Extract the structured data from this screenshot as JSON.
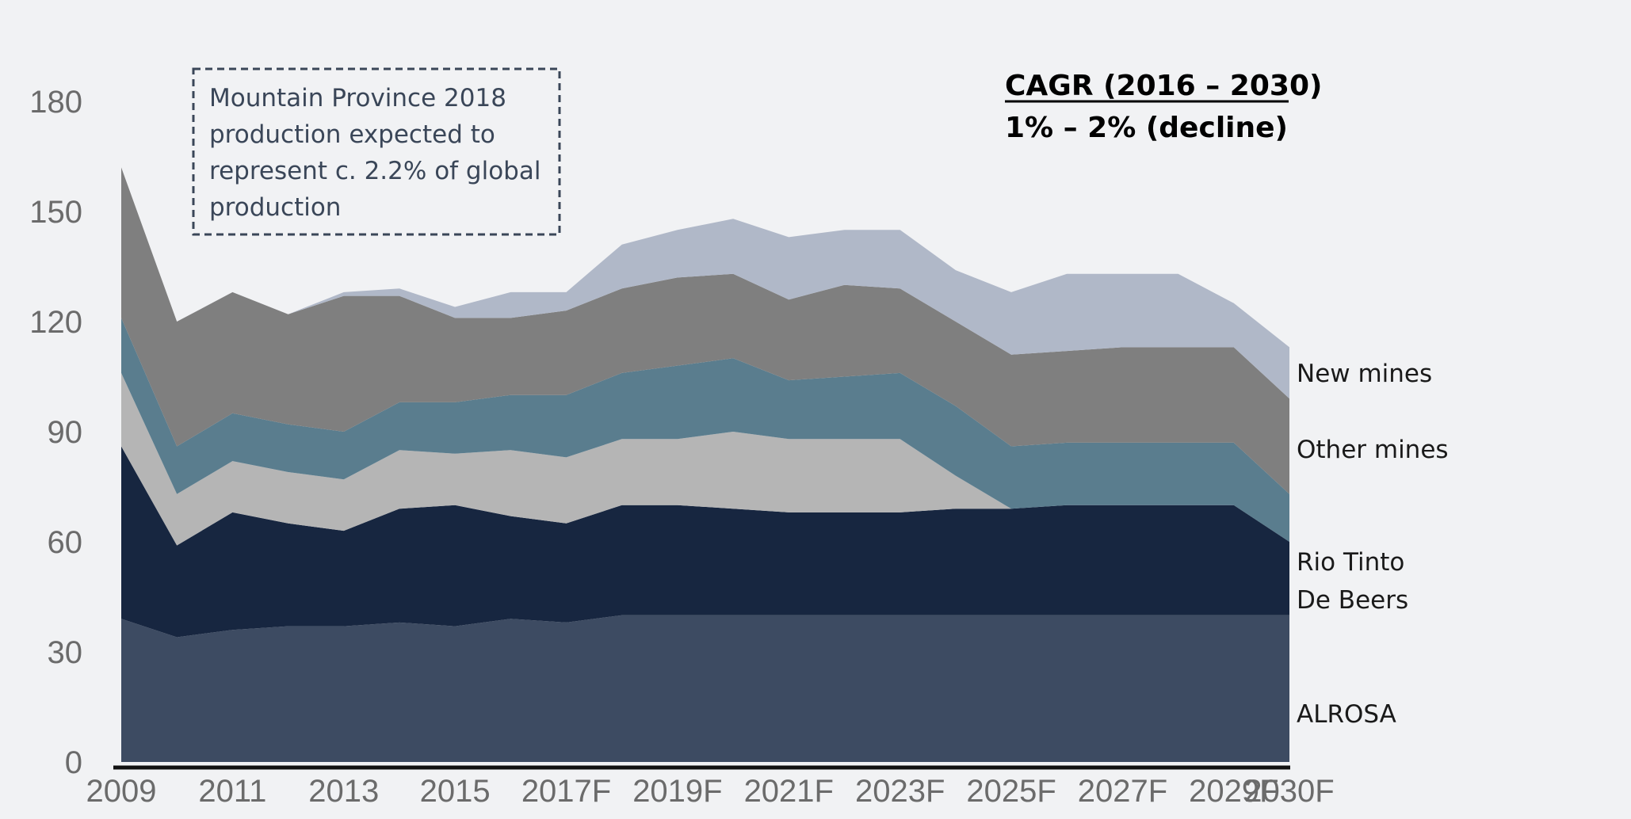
{
  "chart_data": {
    "type": "area",
    "stacked": true,
    "title": "",
    "xlabel": "",
    "ylabel": "",
    "ylim": [
      0,
      180
    ],
    "yticks": [
      0,
      30,
      60,
      90,
      120,
      150,
      180
    ],
    "x": [
      "2009",
      "2010",
      "2011",
      "2012",
      "2013",
      "2014",
      "2015",
      "2016",
      "2017F",
      "2018F",
      "2019F",
      "2020F",
      "2021F",
      "2022F",
      "2023F",
      "2024F",
      "2025F",
      "2026F",
      "2027F",
      "2028F",
      "2029F",
      "2030F"
    ],
    "xtick_labels": [
      "2009",
      "2011",
      "2013",
      "2015",
      "2017F",
      "2019F",
      "2021F",
      "2023F",
      "2025F",
      "2027F",
      "2029F",
      "2030F"
    ],
    "series": [
      {
        "name": "ALROSA",
        "color": "#3d4b62",
        "values": [
          39,
          34,
          36,
          37,
          37,
          38,
          37,
          39,
          38,
          40,
          40,
          40,
          40,
          40,
          40,
          40,
          40,
          40,
          40,
          40,
          40,
          40
        ]
      },
      {
        "name": "De Beers",
        "color": "#172640",
        "values": [
          47,
          25,
          32,
          28,
          26,
          31,
          33,
          28,
          27,
          30,
          30,
          29,
          28,
          28,
          28,
          29,
          29,
          30,
          30,
          30,
          30,
          20
        ]
      },
      {
        "name": "Rio Tinto",
        "color": "#b5b5b5",
        "values": [
          20,
          14,
          14,
          14,
          14,
          16,
          14,
          18,
          18,
          18,
          18,
          21,
          20,
          20,
          20,
          9,
          0,
          0,
          0,
          0,
          0,
          0
        ]
      },
      {
        "name": "Other mines",
        "color": "#5a7d8e",
        "values": [
          15,
          13,
          13,
          13,
          13,
          13,
          14,
          15,
          17,
          18,
          20,
          20,
          16,
          17,
          18,
          19,
          17,
          17,
          17,
          17,
          17,
          13
        ]
      },
      {
        "name": "",
        "color": "#7f7f7f",
        "values": [
          41,
          34,
          33,
          30,
          37,
          29,
          23,
          21,
          23,
          23,
          24,
          23,
          22,
          25,
          23,
          23,
          25,
          25,
          26,
          26,
          26,
          26
        ]
      },
      {
        "name": "New mines",
        "color": "#b0b8c8",
        "values": [
          0,
          0,
          0,
          0,
          1,
          2,
          3,
          7,
          5,
          12,
          13,
          15,
          17,
          15,
          16,
          14,
          17,
          21,
          20,
          20,
          12,
          14
        ]
      }
    ],
    "annotations": [
      {
        "lines": [
          "Mountain Province 2018",
          "production expected to",
          "represent c. 2.2% of global",
          "production"
        ]
      },
      {
        "lines": [
          "CAGR (2016 – 2030)",
          "1% – 2% (decline)"
        ]
      }
    ],
    "legend": "right-inline",
    "grid": false
  },
  "colors": {
    "background": "#f1f2f4",
    "axis": "#111111",
    "tick_text": "#6b6b6b",
    "note_border": "#3a4658"
  }
}
